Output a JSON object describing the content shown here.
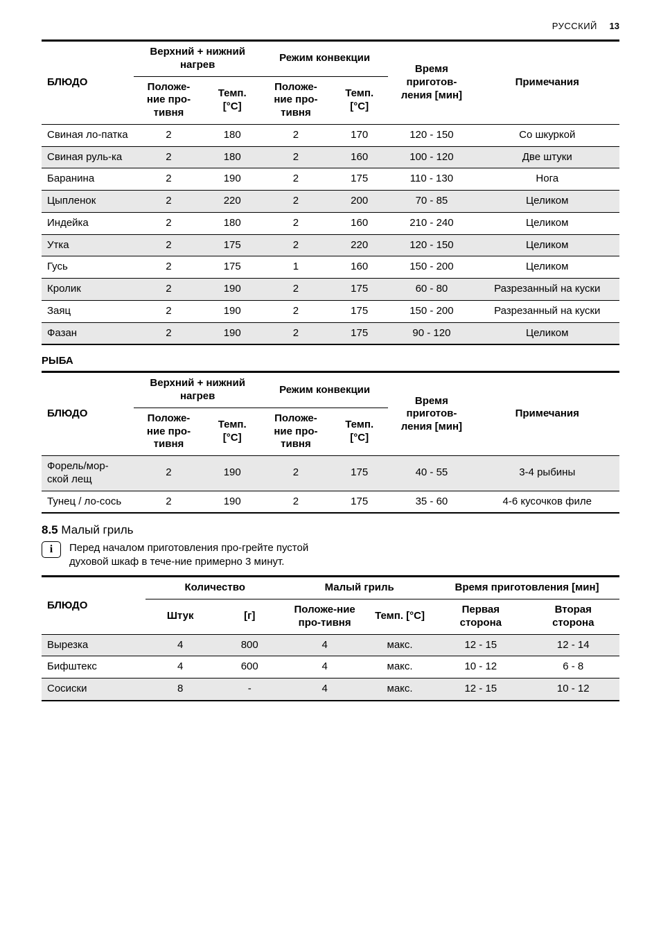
{
  "header": {
    "language": "РУССКИЙ",
    "page": "13"
  },
  "t1": {
    "head": {
      "dish": "БЛЮДО",
      "group1": "Верхний + нижний нагрев",
      "group2": "Режим конвекции",
      "time": "Время приготов-ления [мин]",
      "notes": "Примечания",
      "sub_pos": "Положе-ние про-тивня",
      "sub_temp": "Темп. [°C]"
    },
    "rows": [
      {
        "dish": "Свиная ло-патка",
        "p1": "2",
        "t1": "180",
        "p2": "2",
        "t2": "170",
        "time": "120 - 150",
        "note": "Со шкуркой"
      },
      {
        "dish": "Свиная руль-ка",
        "p1": "2",
        "t1": "180",
        "p2": "2",
        "t2": "160",
        "time": "100 - 120",
        "note": "Две штуки"
      },
      {
        "dish": "Баранина",
        "p1": "2",
        "t1": "190",
        "p2": "2",
        "t2": "175",
        "time": "110 - 130",
        "note": "Нога"
      },
      {
        "dish": "Цыпленок",
        "p1": "2",
        "t1": "220",
        "p2": "2",
        "t2": "200",
        "time": "70 - 85",
        "note": "Целиком"
      },
      {
        "dish": "Индейка",
        "p1": "2",
        "t1": "180",
        "p2": "2",
        "t2": "160",
        "time": "210 - 240",
        "note": "Целиком"
      },
      {
        "dish": "Утка",
        "p1": "2",
        "t1": "175",
        "p2": "2",
        "t2": "220",
        "time": "120 - 150",
        "note": "Целиком"
      },
      {
        "dish": "Гусь",
        "p1": "2",
        "t1": "175",
        "p2": "1",
        "t2": "160",
        "time": "150 - 200",
        "note": "Целиком"
      },
      {
        "dish": "Кролик",
        "p1": "2",
        "t1": "190",
        "p2": "2",
        "t2": "175",
        "time": "60 - 80",
        "note": "Разрезанный на куски"
      },
      {
        "dish": "Заяц",
        "p1": "2",
        "t1": "190",
        "p2": "2",
        "t2": "175",
        "time": "150 - 200",
        "note": "Разрезанный на куски"
      },
      {
        "dish": "Фазан",
        "p1": "2",
        "t1": "190",
        "p2": "2",
        "t2": "175",
        "time": "90 - 120",
        "note": "Целиком"
      }
    ]
  },
  "fish_label": "РЫБА",
  "t2": {
    "rows": [
      {
        "dish": "Форель/мор-ской лещ",
        "p1": "2",
        "t1": "190",
        "p2": "2",
        "t2": "175",
        "time": "40 - 55",
        "note": "3-4 рыбины"
      },
      {
        "dish": "Тунец / ло-сось",
        "p1": "2",
        "t1": "190",
        "p2": "2",
        "t2": "175",
        "time": "35 - 60",
        "note": "4-6 кусочков филе"
      }
    ]
  },
  "subsection": {
    "num": "8.5",
    "title": "Малый гриль"
  },
  "info": "Перед началом приготовления про-грейте пустой духовой шкаф в тече-ние примерно 3 минут.",
  "t3": {
    "head": {
      "dish": "БЛЮДО",
      "qty": "Количество",
      "grill": "Малый гриль",
      "time": "Время приготовления [мин]",
      "pcs": "Штук",
      "g": "[г]",
      "pos": "Положе-ние про-тивня",
      "temp": "Темп. [°C]",
      "first": "Первая сторона",
      "second": "Вторая сторона"
    },
    "rows": [
      {
        "dish": "Вырезка",
        "pcs": "4",
        "g": "800",
        "pos": "4",
        "temp": "макс.",
        "s1": "12 - 15",
        "s2": "12 - 14"
      },
      {
        "dish": "Бифштекс",
        "pcs": "4",
        "g": "600",
        "pos": "4",
        "temp": "макс.",
        "s1": "10 - 12",
        "s2": "6 - 8"
      },
      {
        "dish": "Сосиски",
        "pcs": "8",
        "g": "-",
        "pos": "4",
        "temp": "макс.",
        "s1": "12 - 15",
        "s2": "10 - 12"
      }
    ]
  }
}
